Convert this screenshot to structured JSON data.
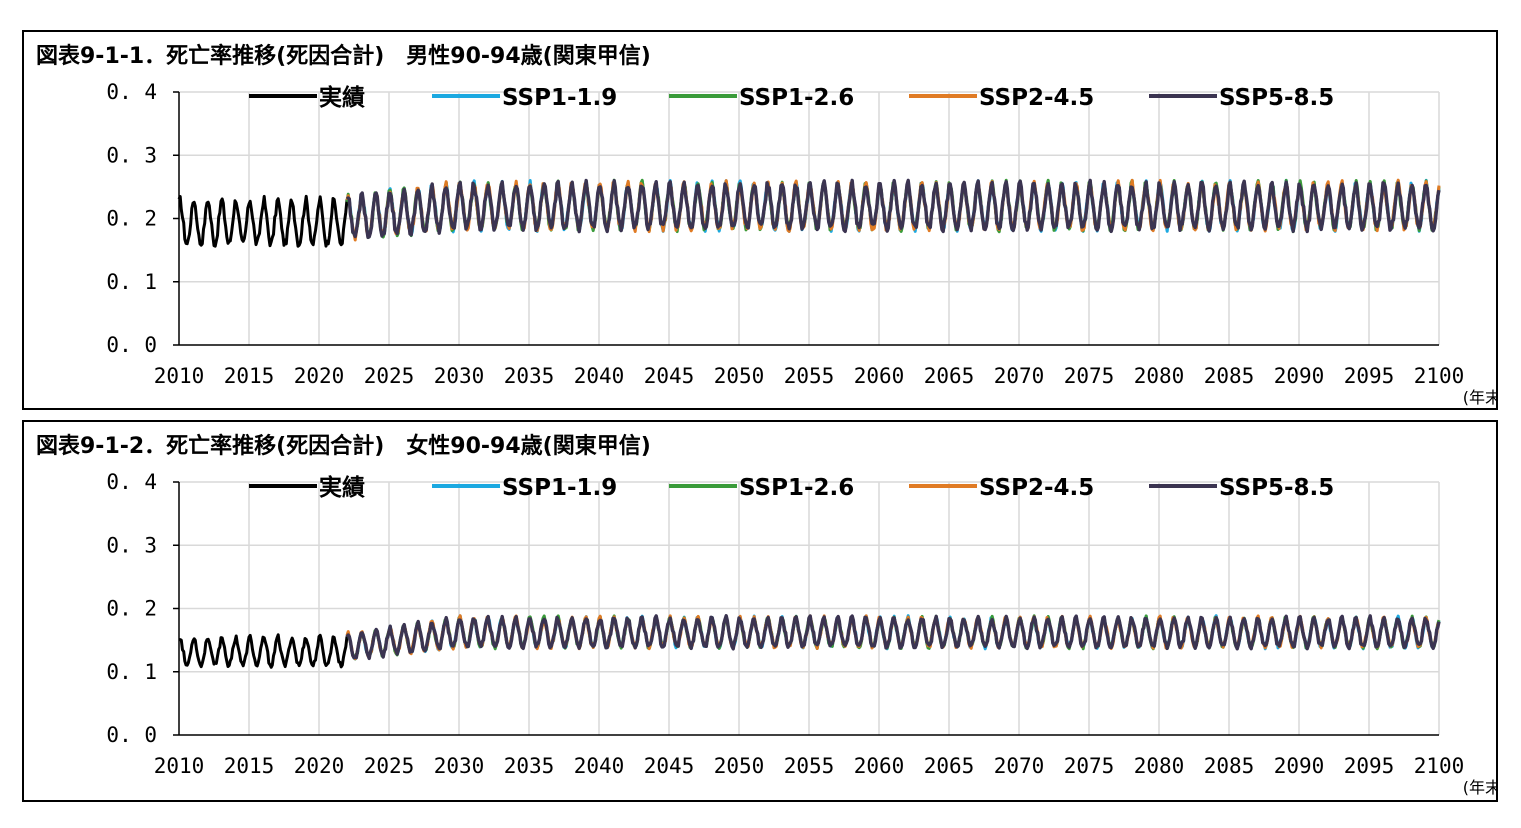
{
  "chart_data": [
    {
      "type": "line",
      "title": "図表9-1-1．死亡率推移(死因合計)　男性90-94歳(関東甲信)",
      "xlabel": "",
      "ylabel": "",
      "x_unit": "(年末)",
      "xlim": [
        2010,
        2100
      ],
      "ylim": [
        0.0,
        0.4
      ],
      "x_ticks": [
        "2010",
        "2015",
        "2020",
        "2025",
        "2030",
        "2035",
        "2040",
        "2045",
        "2050",
        "2055",
        "2060",
        "2065",
        "2070",
        "2075",
        "2080",
        "2085",
        "2090",
        "2095",
        "2100"
      ],
      "y_ticks": [
        "0.0",
        "0.1",
        "0.2",
        "0.3",
        "0.4"
      ],
      "grid": true,
      "legend_position": "top",
      "seasonal": {
        "actual_peak": 0.23,
        "actual_trough": 0.16,
        "proj_peak_start": 0.235,
        "proj_trough_start": 0.17,
        "proj_peak": 0.255,
        "proj_trough": 0.185
      },
      "series": [
        {
          "name": "実績",
          "color": "#000000",
          "x_range": [
            2010,
            2022
          ]
        },
        {
          "name": "SSP1-1.9",
          "color": "#1ca9e1",
          "x_range": [
            2022,
            2100
          ]
        },
        {
          "name": "SSP1-2.6",
          "color": "#3a9b3a",
          "x_range": [
            2022,
            2100
          ]
        },
        {
          "name": "SSP2-4.5",
          "color": "#e07b24",
          "x_range": [
            2022,
            2100
          ]
        },
        {
          "name": "SSP5-8.5",
          "color": "#3b3451",
          "x_range": [
            2022,
            2100
          ]
        }
      ]
    },
    {
      "type": "line",
      "title": "図表9-1-2．死亡率推移(死因合計)　女性90-94歳(関東甲信)",
      "xlabel": "",
      "ylabel": "",
      "x_unit": "(年末)",
      "xlim": [
        2010,
        2100
      ],
      "ylim": [
        0.0,
        0.4
      ],
      "x_ticks": [
        "2010",
        "2015",
        "2020",
        "2025",
        "2030",
        "2035",
        "2040",
        "2045",
        "2050",
        "2055",
        "2060",
        "2065",
        "2070",
        "2075",
        "2080",
        "2085",
        "2090",
        "2095",
        "2100"
      ],
      "y_ticks": [
        "0.0",
        "0.1",
        "0.2",
        "0.3",
        "0.4"
      ],
      "grid": true,
      "legend_position": "top",
      "seasonal": {
        "actual_peak": 0.155,
        "actual_trough": 0.11,
        "proj_peak_start": 0.16,
        "proj_trough_start": 0.12,
        "proj_peak": 0.185,
        "proj_trough": 0.14
      },
      "series": [
        {
          "name": "実績",
          "color": "#000000",
          "x_range": [
            2010,
            2022
          ]
        },
        {
          "name": "SSP1-1.9",
          "color": "#1ca9e1",
          "x_range": [
            2022,
            2100
          ]
        },
        {
          "name": "SSP1-2.6",
          "color": "#3a9b3a",
          "x_range": [
            2022,
            2100
          ]
        },
        {
          "name": "SSP2-4.5",
          "color": "#e07b24",
          "x_range": [
            2022,
            2100
          ]
        },
        {
          "name": "SSP5-8.5",
          "color": "#3b3451",
          "x_range": [
            2022,
            2100
          ]
        }
      ]
    }
  ]
}
